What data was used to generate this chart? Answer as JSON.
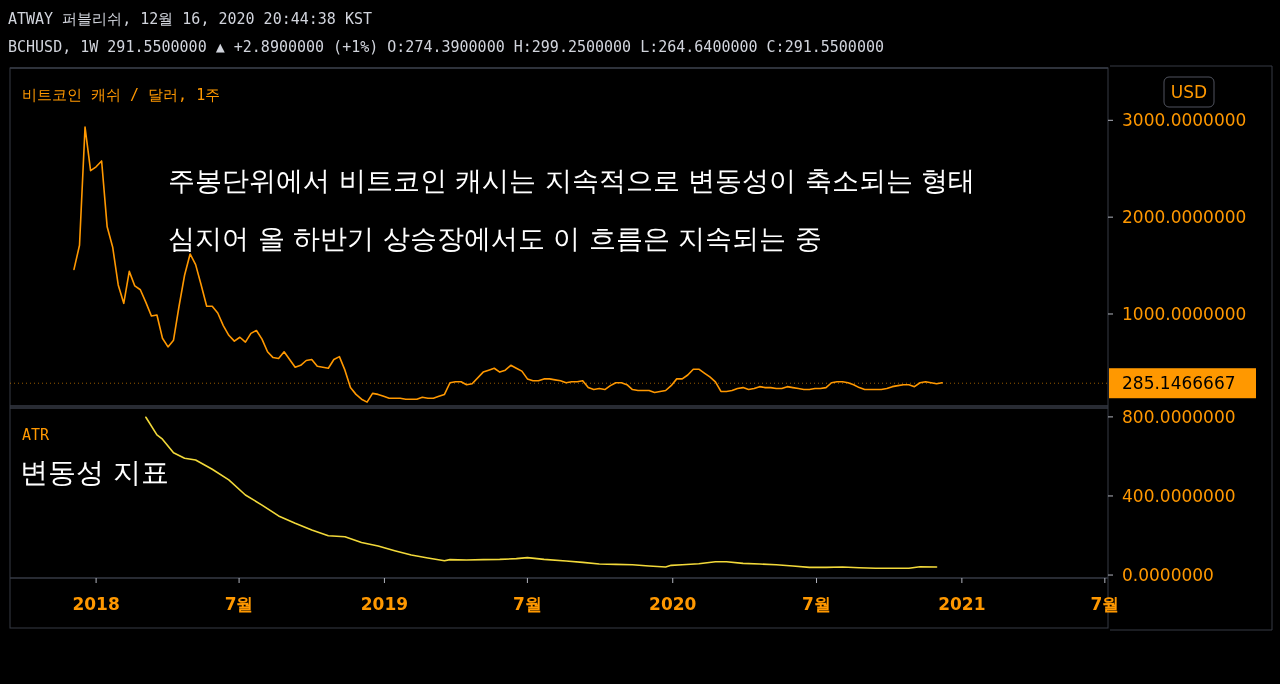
{
  "chart_data": [
    {
      "type": "line",
      "title": "비트코인 캐쉬 / 달러, 1주",
      "ylabel": "USD",
      "tick_labels": "y",
      "annotations": [
        "ATWAY 퍼블리쉬, 12월 16, 2020 20:44:38 KST",
        "BCHUSD, 1W 291.5500000 ▲ +2.8900000 (+1%) O:274.3900000 H:299.2500000 L:264.6400000 C:291.5500000",
        "주봉단위에서 비트코인 캐시는 지속적으로 변동성이 축소되는 형태",
        "심지어 올 하반기 상승장에서도 이 흐름은 지속되는 중"
      ],
      "x": [
        "2017-12-04",
        "2017-12-11",
        "2017-12-18",
        "2017-12-25",
        "2018-01-01",
        "2018-01-08",
        "2018-01-15",
        "2018-01-22",
        "2018-01-29",
        "2018-02-05",
        "2018-02-12",
        "2018-02-19",
        "2018-02-26",
        "2018-03-05",
        "2018-03-12",
        "2018-03-19",
        "2018-03-26",
        "2018-04-02",
        "2018-04-09",
        "2018-04-16",
        "2018-04-23",
        "2018-04-30",
        "2018-05-07",
        "2018-05-14",
        "2018-05-21",
        "2018-05-28",
        "2018-06-04",
        "2018-06-11",
        "2018-06-18",
        "2018-06-25",
        "2018-07-02",
        "2018-07-09",
        "2018-07-16",
        "2018-07-23",
        "2018-07-30",
        "2018-08-06",
        "2018-08-13",
        "2018-08-20",
        "2018-08-27",
        "2018-09-03",
        "2018-09-10",
        "2018-09-17",
        "2018-09-24",
        "2018-10-01",
        "2018-10-08",
        "2018-10-15",
        "2018-10-22",
        "2018-10-29",
        "2018-11-05",
        "2018-11-12",
        "2018-11-19",
        "2018-11-26",
        "2018-12-03",
        "2018-12-10",
        "2018-12-17",
        "2018-12-24",
        "2018-12-31",
        "2019-01-07",
        "2019-01-14",
        "2019-01-21",
        "2019-01-28",
        "2019-02-04",
        "2019-02-11",
        "2019-02-18",
        "2019-02-25",
        "2019-03-04",
        "2019-03-11",
        "2019-03-18",
        "2019-03-25",
        "2019-04-01",
        "2019-04-08",
        "2019-04-15",
        "2019-04-22",
        "2019-05-06",
        "2019-05-13",
        "2019-05-20",
        "2019-05-27",
        "2019-06-03",
        "2019-06-10",
        "2019-06-17",
        "2019-06-24",
        "2019-07-01",
        "2019-07-08",
        "2019-07-15",
        "2019-07-22",
        "2019-07-29",
        "2019-08-05",
        "2019-08-12",
        "2019-08-19",
        "2019-08-26",
        "2019-09-02",
        "2019-09-09",
        "2019-09-16",
        "2019-09-23",
        "2019-09-30",
        "2019-10-07",
        "2019-10-14",
        "2019-10-21",
        "2019-10-28",
        "2019-11-04",
        "2019-11-11",
        "2019-11-18",
        "2019-11-25",
        "2019-12-02",
        "2019-12-09",
        "2019-12-16",
        "2019-12-23",
        "2019-12-30",
        "2020-01-06",
        "2020-01-13",
        "2020-01-20",
        "2020-01-27",
        "2020-02-03",
        "2020-02-10",
        "2020-02-17",
        "2020-02-24",
        "2020-03-02",
        "2020-03-09",
        "2020-03-16",
        "2020-03-23",
        "2020-03-30",
        "2020-04-06",
        "2020-04-13",
        "2020-04-20",
        "2020-04-27",
        "2020-05-04",
        "2020-05-11",
        "2020-05-18",
        "2020-05-25",
        "2020-06-01",
        "2020-06-08",
        "2020-06-15",
        "2020-06-22",
        "2020-06-29",
        "2020-07-06",
        "2020-07-13",
        "2020-07-20",
        "2020-07-27",
        "2020-08-03",
        "2020-08-10",
        "2020-08-17",
        "2020-08-24",
        "2020-08-31",
        "2020-09-07",
        "2020-09-14",
        "2020-09-21",
        "2020-09-28",
        "2020-10-05",
        "2020-10-12",
        "2020-10-19",
        "2020-10-26",
        "2020-11-02",
        "2020-11-09",
        "2020-11-16",
        "2020-11-23",
        "2020-11-30",
        "2020-12-07"
      ],
      "series": [
        {
          "color": "#ff9800",
          "values": [
            1460,
            1710,
            2930,
            2480,
            2520,
            2580,
            1900,
            1690,
            1300,
            1110,
            1440,
            1290,
            1250,
            1120,
            980,
            990,
            750,
            660,
            730,
            1080,
            1400,
            1620,
            1510,
            1300,
            1080,
            1080,
            1010,
            880,
            780,
            720,
            760,
            710,
            800,
            830,
            740,
            610,
            550,
            540,
            610,
            530,
            450,
            470,
            520,
            530,
            460,
            450,
            440,
            530,
            560,
            420,
            240,
            170,
            120,
            90,
            180,
            170,
            150,
            130,
            130,
            130,
            120,
            120,
            120,
            140,
            130,
            130,
            150,
            170,
            290,
            300,
            300,
            270,
            280,
            400,
            420,
            440,
            400,
            420,
            470,
            440,
            410,
            330,
            310,
            310,
            330,
            330,
            320,
            310,
            290,
            300,
            300,
            310,
            240,
            220,
            230,
            220,
            260,
            290,
            290,
            270,
            220,
            210,
            210,
            210,
            190,
            200,
            210,
            260,
            330,
            330,
            370,
            430,
            430,
            390,
            350,
            300,
            200,
            200,
            210,
            230,
            240,
            220,
            230,
            250,
            240,
            240,
            230,
            230,
            250,
            240,
            230,
            220,
            220,
            230,
            230,
            240,
            290,
            300,
            300,
            290,
            270,
            240,
            220,
            220,
            220,
            220,
            230,
            250,
            260,
            270,
            270,
            250,
            290,
            300,
            290,
            280,
            290
          ]
        }
      ],
      "xlim": [
        "2017-09-14",
        "2021-07-05"
      ],
      "ylim": [
        50,
        3540
      ],
      "yticks": [
        {
          "value": 1000,
          "label": "1000.0000000"
        },
        {
          "value": 2000,
          "label": "2000.0000000"
        },
        {
          "value": 3000,
          "label": "3000.0000000"
        }
      ],
      "ref_lines": [
        {
          "axis": "y",
          "value": 285.1466667,
          "label": "285.1466667",
          "color": "#ff9800",
          "line_style": "dotted"
        }
      ]
    },
    {
      "type": "line",
      "title": "ATR",
      "annotations": [
        "변동성 지표"
      ],
      "x": [
        "2018-03-05",
        "2018-03-19",
        "2018-03-26",
        "2018-04-09",
        "2018-04-23",
        "2018-05-07",
        "2018-05-28",
        "2018-06-18",
        "2018-07-09",
        "2018-07-30",
        "2018-08-20",
        "2018-09-10",
        "2018-10-01",
        "2018-10-22",
        "2018-11-12",
        "2018-12-03",
        "2018-12-24",
        "2019-01-14",
        "2019-02-04",
        "2019-02-25",
        "2019-03-18",
        "2019-03-25",
        "2019-04-15",
        "2019-05-06",
        "2019-05-27",
        "2019-06-17",
        "2019-07-01",
        "2019-07-22",
        "2019-08-19",
        "2019-09-09",
        "2019-09-30",
        "2019-10-21",
        "2019-11-11",
        "2019-12-02",
        "2019-12-23",
        "2019-12-30",
        "2020-01-13",
        "2020-02-03",
        "2020-02-24",
        "2020-03-09",
        "2020-03-30",
        "2020-04-20",
        "2020-05-11",
        "2020-06-01",
        "2020-06-22",
        "2020-07-13",
        "2020-08-03",
        "2020-08-24",
        "2020-09-14",
        "2020-10-05",
        "2020-10-26",
        "2020-11-09",
        "2020-11-30"
      ],
      "series": [
        {
          "color": "#f2d93a",
          "values": [
            798,
            709,
            687,
            619,
            591,
            582,
            535,
            481,
            405,
            354,
            299,
            262,
            228,
            199,
            194,
            165,
            147,
            123,
            101,
            86,
            72,
            78,
            76,
            78,
            79,
            83,
            88,
            79,
            71,
            64,
            56,
            54,
            52,
            46,
            41,
            49,
            52,
            57,
            67,
            67,
            59,
            56,
            52,
            46,
            39,
            39,
            41,
            37,
            34,
            34,
            34,
            42,
            41
          ]
        }
      ],
      "xlim": [
        "2017-09-14",
        "2021-07-05"
      ],
      "xticks": [
        {
          "value": "2018-01-01",
          "label": "2018"
        },
        {
          "value": "2018-07-01",
          "label": "7월"
        },
        {
          "value": "2019-01-01",
          "label": "2019"
        },
        {
          "value": "2019-07-01",
          "label": "7월"
        },
        {
          "value": "2020-01-01",
          "label": "2020"
        },
        {
          "value": "2020-07-01",
          "label": "7월"
        },
        {
          "value": "2021-01-01",
          "label": "2021"
        },
        {
          "value": "2021-07-01",
          "label": "7월"
        }
      ],
      "ylim": [
        -15,
        845
      ],
      "yticks": [
        {
          "value": 0,
          "label": "0.0000000"
        },
        {
          "value": 400,
          "label": "400.0000000"
        },
        {
          "value": 800,
          "label": "800.0000000"
        }
      ]
    }
  ]
}
